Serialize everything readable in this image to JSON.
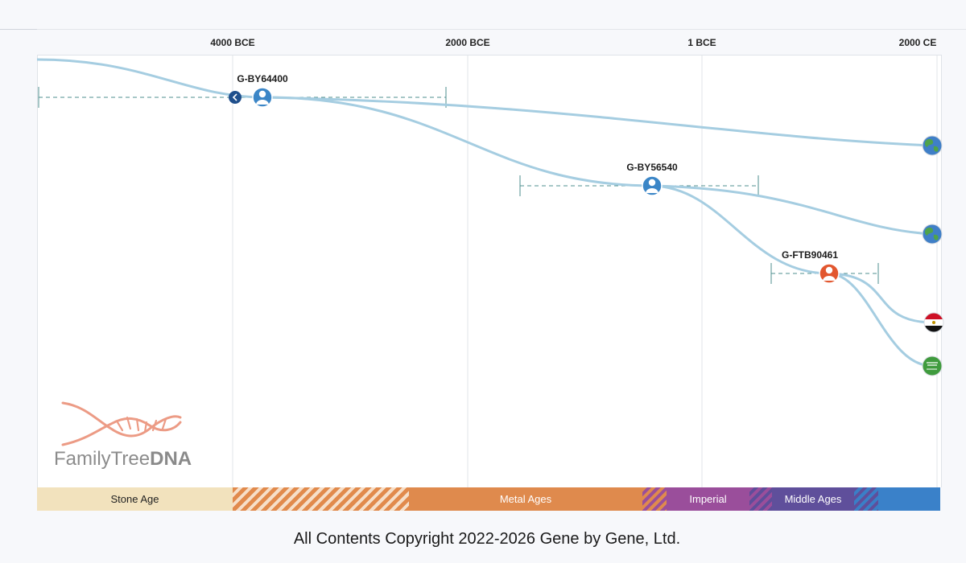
{
  "timeline": {
    "axis_labels": [
      "4000 BCE",
      "2000 BCE",
      "1 BCE",
      "2000 CE"
    ]
  },
  "nodes": {
    "n1": {
      "label": "G-BY64400"
    },
    "n2": {
      "label": "G-BY56540"
    },
    "n3": {
      "label": "G-FTB90461"
    }
  },
  "leaf_flags": [
    "globe",
    "globe",
    "egypt-flag",
    "saudi-arabia-flag"
  ],
  "eras": {
    "stone": "Stone Age",
    "metal": "Metal Ages",
    "imperial": "Imperial",
    "middle": "Middle Ages"
  },
  "logo": {
    "text_light": "FamilyTree",
    "text_bold": "DNA"
  },
  "footer": "All Contents Copyright 2022-2026 Gene by Gene, Ltd.",
  "colors": {
    "branch": "#a5cde1",
    "node_blue": "#3b86c7",
    "node_orange": "#e2572f",
    "stone": "#f2e2bd",
    "metal": "#df8a4d",
    "imperial": "#9a4e9b",
    "middle": "#5f4f9b",
    "modern": "#3a81c9"
  }
}
